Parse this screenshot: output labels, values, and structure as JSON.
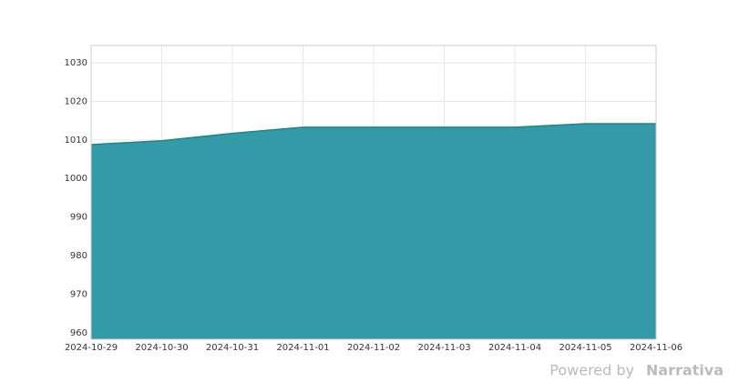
{
  "chart_data": {
    "type": "area",
    "x": [
      "2024-10-29",
      "2024-10-30",
      "2024-10-31",
      "2024-11-01",
      "2024-11-02",
      "2024-11-03",
      "2024-11-04",
      "2024-11-05",
      "2024-11-06"
    ],
    "series": [
      {
        "color": "#2e97a4",
        "values": [
          1008.8,
          1009.8,
          1011.7,
          1013.3,
          1013.3,
          1013.3,
          1013.3,
          1014.2,
          1014.2
        ]
      }
    ],
    "ylim": [
      958.3,
      1034.5
    ],
    "yticks": [
      960,
      970,
      980,
      990,
      1000,
      1010,
      1020,
      1030
    ],
    "grid": true,
    "credit": "Powered by",
    "brand": "Narrativa"
  }
}
